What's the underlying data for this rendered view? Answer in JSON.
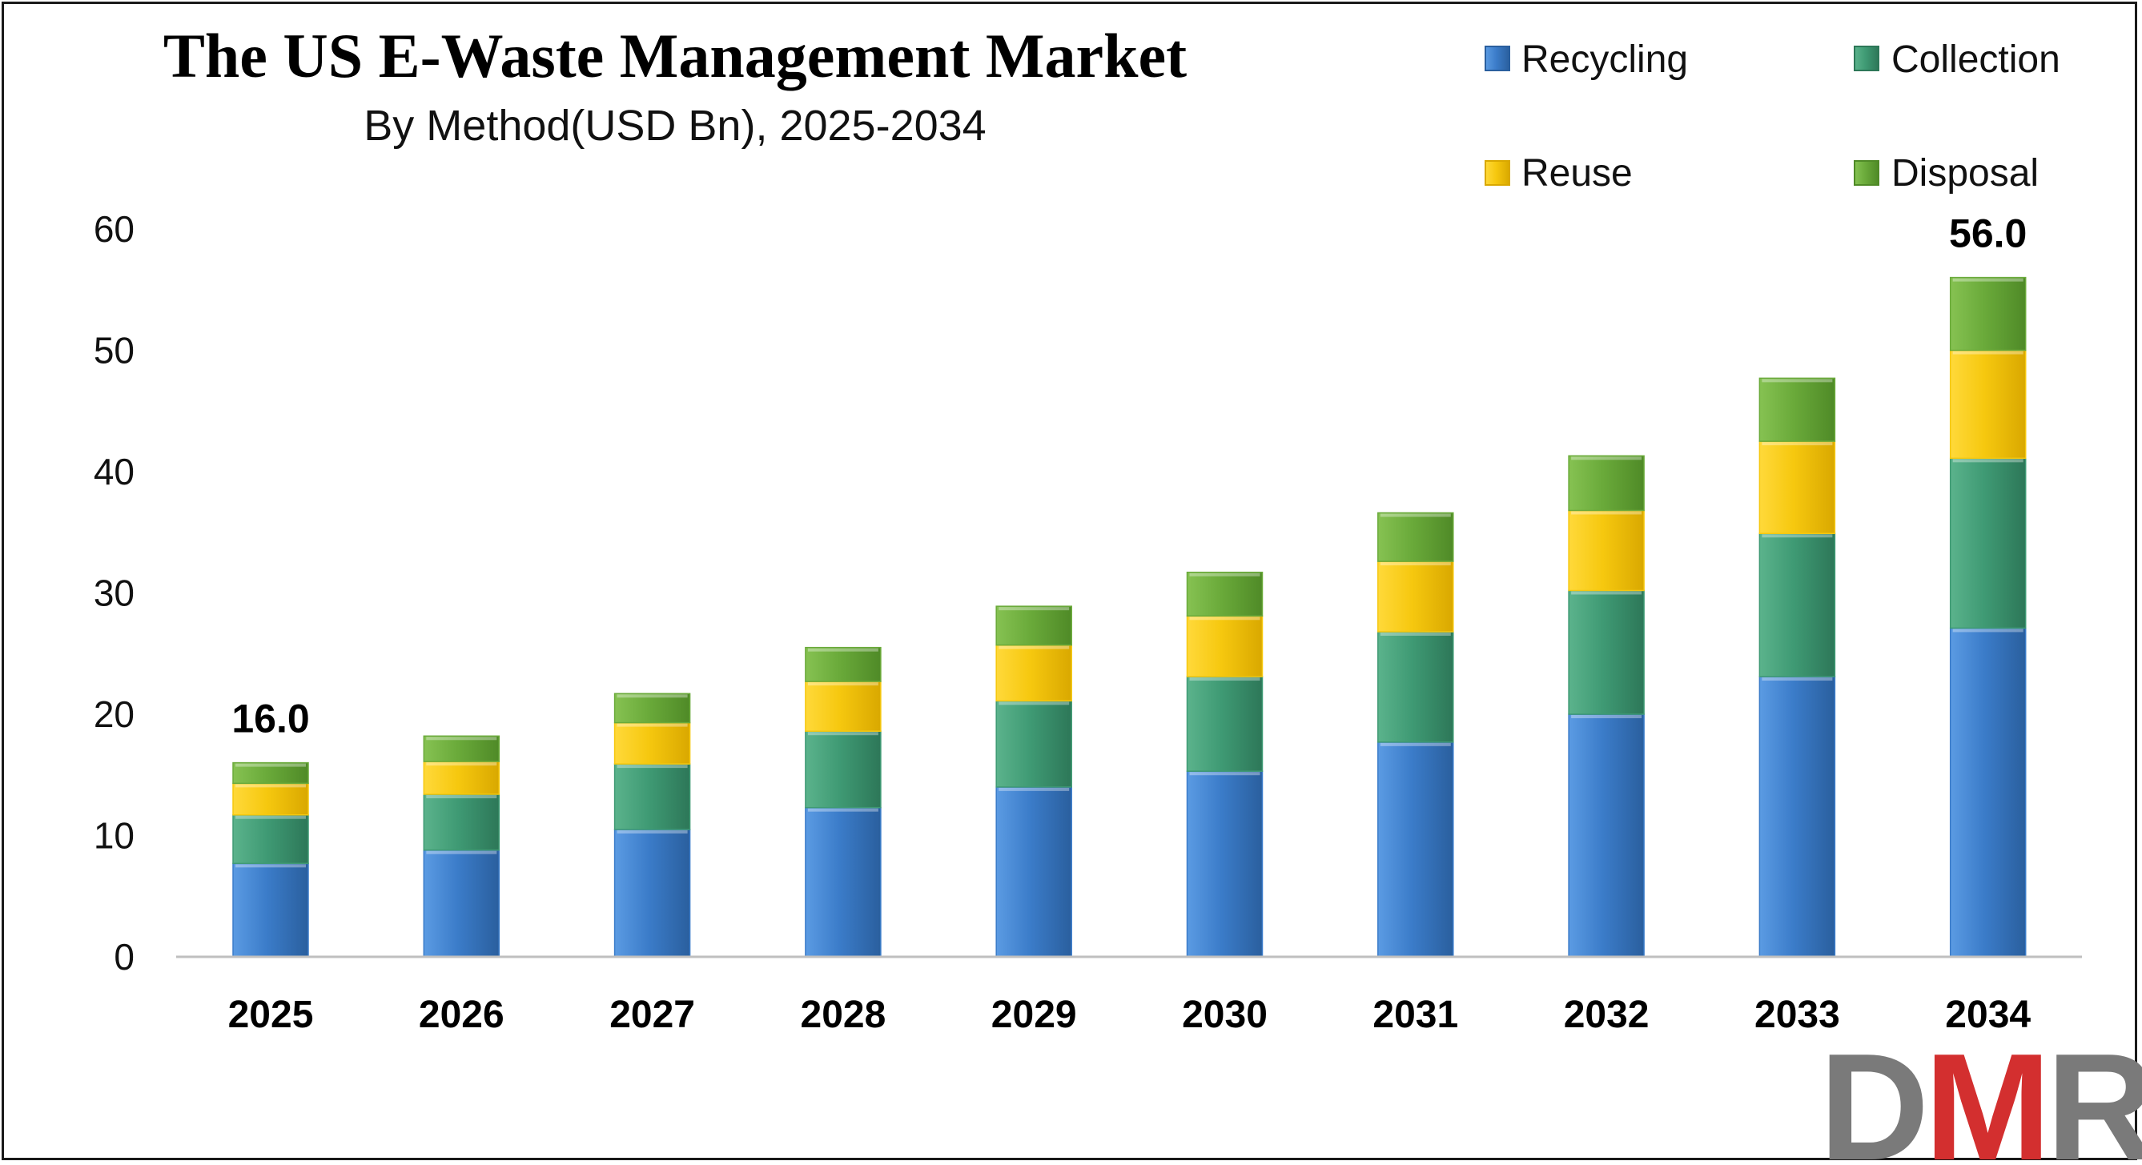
{
  "chart_data": {
    "type": "bar",
    "stacked": true,
    "title": "The US E-Waste Management Market",
    "subtitle": "By Method(USD Bn), 2025-2034",
    "categories": [
      "2025",
      "2026",
      "2027",
      "2028",
      "2029",
      "2030",
      "2031",
      "2032",
      "2033",
      "2034"
    ],
    "series": [
      {
        "name": "Recycling",
        "color": "#3b7cc9",
        "values": [
          7.7,
          8.8,
          10.5,
          12.3,
          14.0,
          15.3,
          17.7,
          20.0,
          23.1,
          27.1
        ]
      },
      {
        "name": "Collection",
        "color": "#3f9a74",
        "values": [
          4.0,
          4.6,
          5.4,
          6.3,
          7.1,
          7.8,
          9.1,
          10.2,
          11.8,
          14.0
        ]
      },
      {
        "name": "Reuse",
        "color": "#f6c80f",
        "values": [
          2.6,
          2.7,
          3.4,
          4.1,
          4.6,
          5.0,
          5.8,
          6.6,
          7.6,
          8.9
        ]
      },
      {
        "name": "Disposal",
        "color": "#6aaa3a",
        "values": [
          1.7,
          2.1,
          2.4,
          2.8,
          3.2,
          3.6,
          4.0,
          4.5,
          5.2,
          6.0
        ]
      }
    ],
    "totals": [
      16.0,
      18.2,
      21.7,
      25.5,
      28.9,
      31.7,
      36.6,
      41.3,
      47.7,
      56.0
    ],
    "data_labels": [
      {
        "category": "2025",
        "text": "16.0"
      },
      {
        "category": "2034",
        "text": "56.0"
      }
    ],
    "ylim": [
      0,
      60
    ],
    "yticks": [
      "0",
      "10",
      "20",
      "30",
      "40",
      "50",
      "60"
    ],
    "xlabel": "",
    "ylabel": "",
    "grid": false,
    "legend_position": "top-right"
  },
  "logo": {
    "text": "DMR",
    "colors": {
      "d": "#7a7a7a",
      "m": "#d32f2f",
      "r": "#7a7a7a"
    }
  }
}
